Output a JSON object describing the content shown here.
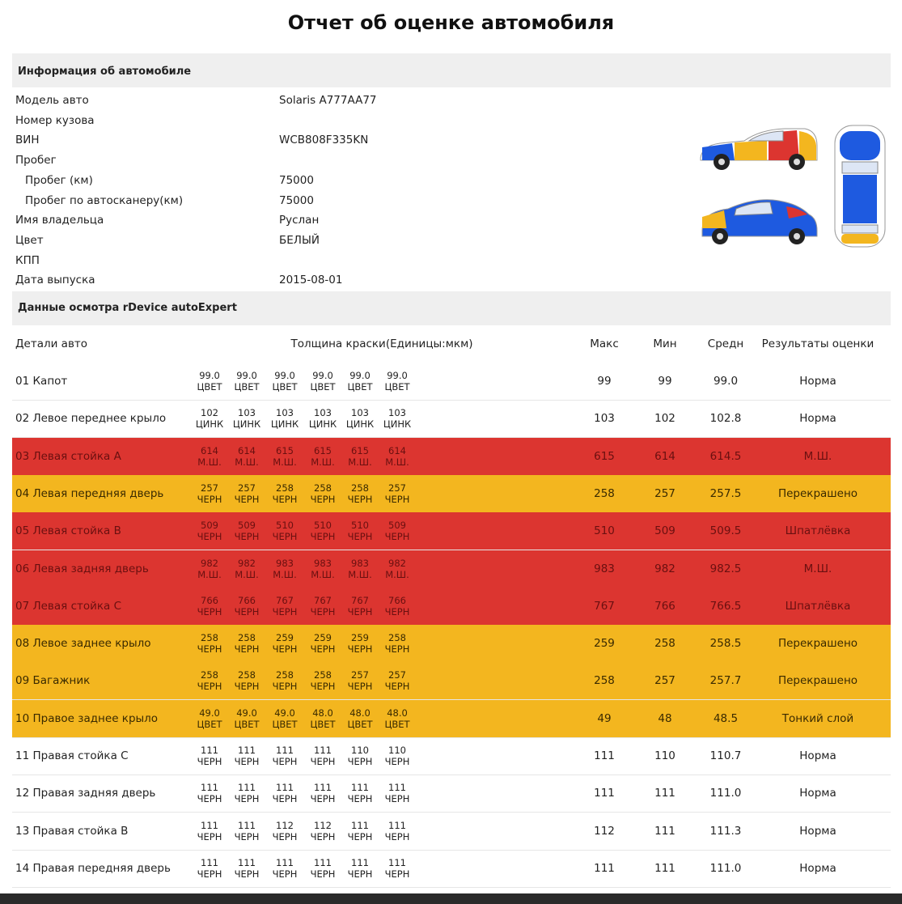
{
  "header": {
    "title": "Отчет об оценке автомобиля"
  },
  "info": {
    "title": "Информация об автомобиле",
    "rows": [
      {
        "label": "Модель авто",
        "value": "Solaris A777AA77"
      },
      {
        "label": "Номер кузова"
      },
      {
        "label": "ВИН",
        "value": "WCB808F335KN"
      },
      {
        "label": "Пробег",
        "children": [
          {
            "label": "Пробег (км)",
            "value": "75000"
          },
          {
            "label": "Пробег по автосканеру(км)",
            "value": "75000"
          }
        ]
      },
      {
        "label": "Имя владельца",
        "value": "Руслан"
      },
      {
        "label": "Цвет",
        "value": "БЕЛЫЙ"
      },
      {
        "label": "КПП"
      },
      {
        "label": "Дата выпуска",
        "value": "2015-08-01"
      }
    ]
  },
  "inspection": {
    "title": "Данные осмотра rDevice autoExpert",
    "table": {
      "columns": [
        "Детали авто",
        "Толщина краски(Единицы:мкм)",
        "Макс",
        "Мин",
        "Средн",
        "Результаты оценки"
      ],
      "rows": [
        {
          "part": "01 Капот",
          "readings": [
            [
              "99.0",
              "ЦВЕТ"
            ],
            [
              "99.0",
              "ЦВЕТ"
            ],
            [
              "99.0",
              "ЦВЕТ"
            ],
            [
              "99.0",
              "ЦВЕТ"
            ],
            [
              "99.0",
              "ЦВЕТ"
            ],
            [
              "99.0",
              "ЦВЕТ"
            ]
          ],
          "max": "99",
          "min": "99",
          "avg": "99.0",
          "result": "Норма"
        },
        {
          "part": "02 Левое переднее крыло",
          "readings": [
            [
              "102",
              "ЦИНК"
            ],
            [
              "103",
              "ЦИНК"
            ],
            [
              "103",
              "ЦИНК"
            ],
            [
              "103",
              "ЦИНК"
            ],
            [
              "103",
              "ЦИНК"
            ],
            [
              "103",
              "ЦИНК"
            ]
          ],
          "max": "103",
          "min": "102",
          "avg": "102.8",
          "result": "Норма"
        },
        {
          "part": "03 Левая стойка А",
          "readings": [
            [
              "614",
              "М.Ш."
            ],
            [
              "614",
              "М.Ш."
            ],
            [
              "615",
              "М.Ш."
            ],
            [
              "615",
              "М.Ш."
            ],
            [
              "615",
              "М.Ш."
            ],
            [
              "614",
              "М.Ш."
            ]
          ],
          "max": "615",
          "min": "614",
          "avg": "614.5",
          "result": "М.Ш.",
          "color": "#dc3530"
        },
        {
          "part": "04 Левая передняя дверь",
          "readings": [
            [
              "257",
              "ЧЕРН"
            ],
            [
              "257",
              "ЧЕРН"
            ],
            [
              "258",
              "ЧЕРН"
            ],
            [
              "258",
              "ЧЕРН"
            ],
            [
              "258",
              "ЧЕРН"
            ],
            [
              "257",
              "ЧЕРН"
            ]
          ],
          "max": "258",
          "min": "257",
          "avg": "257.5",
          "result": "Перекрашено",
          "color": "#f3b61f"
        },
        {
          "part": "05 Левая стойка В",
          "readings": [
            [
              "509",
              "ЧЕРН"
            ],
            [
              "509",
              "ЧЕРН"
            ],
            [
              "510",
              "ЧЕРН"
            ],
            [
              "510",
              "ЧЕРН"
            ],
            [
              "510",
              "ЧЕРН"
            ],
            [
              "509",
              "ЧЕРН"
            ]
          ],
          "max": "510",
          "min": "509",
          "avg": "509.5",
          "result": "Шпатлёвка",
          "color": "#dc3530"
        },
        {
          "part": "06 Левая задняя дверь",
          "readings": [
            [
              "982",
              "М.Ш."
            ],
            [
              "982",
              "М.Ш."
            ],
            [
              "983",
              "М.Ш."
            ],
            [
              "983",
              "М.Ш."
            ],
            [
              "983",
              "М.Ш."
            ],
            [
              "982",
              "М.Ш."
            ]
          ],
          "max": "983",
          "min": "982",
          "avg": "982.5",
          "result": "М.Ш.",
          "color": "#dc3530"
        },
        {
          "part": "07 Левая стойка С",
          "readings": [
            [
              "766",
              "ЧЕРН"
            ],
            [
              "766",
              "ЧЕРН"
            ],
            [
              "767",
              "ЧЕРН"
            ],
            [
              "767",
              "ЧЕРН"
            ],
            [
              "767",
              "ЧЕРН"
            ],
            [
              "766",
              "ЧЕРН"
            ]
          ],
          "max": "767",
          "min": "766",
          "avg": "766.5",
          "result": "Шпатлёвка",
          "color": "#dc3530"
        },
        {
          "part": "08 Левое заднее крыло",
          "readings": [
            [
              "258",
              "ЧЕРН"
            ],
            [
              "258",
              "ЧЕРН"
            ],
            [
              "259",
              "ЧЕРН"
            ],
            [
              "259",
              "ЧЕРН"
            ],
            [
              "259",
              "ЧЕРН"
            ],
            [
              "258",
              "ЧЕРН"
            ]
          ],
          "max": "259",
          "min": "258",
          "avg": "258.5",
          "result": "Перекрашено",
          "color": "#f3b61f"
        },
        {
          "part": "09 Багажник",
          "readings": [
            [
              "258",
              "ЧЕРН"
            ],
            [
              "258",
              "ЧЕРН"
            ],
            [
              "258",
              "ЧЕРН"
            ],
            [
              "258",
              "ЧЕРН"
            ],
            [
              "257",
              "ЧЕРН"
            ],
            [
              "257",
              "ЧЕРН"
            ]
          ],
          "max": "258",
          "min": "257",
          "avg": "257.7",
          "result": "Перекрашено",
          "color": "#f3b61f"
        },
        {
          "part": "10 Правое заднее крыло",
          "readings": [
            [
              "49.0",
              "ЦВЕТ"
            ],
            [
              "49.0",
              "ЦВЕТ"
            ],
            [
              "49.0",
              "ЦВЕТ"
            ],
            [
              "48.0",
              "ЦВЕТ"
            ],
            [
              "48.0",
              "ЦВЕТ"
            ],
            [
              "48.0",
              "ЦВЕТ"
            ]
          ],
          "max": "49",
          "min": "48",
          "avg": "48.5",
          "result": "Тонкий слой",
          "color": "#f3b61f"
        },
        {
          "part": "11 Правая стойка С",
          "readings": [
            [
              "111",
              "ЧЕРН"
            ],
            [
              "111",
              "ЧЕРН"
            ],
            [
              "111",
              "ЧЕРН"
            ],
            [
              "111",
              "ЧЕРН"
            ],
            [
              "110",
              "ЧЕРН"
            ],
            [
              "110",
              "ЧЕРН"
            ]
          ],
          "max": "111",
          "min": "110",
          "avg": "110.7",
          "result": "Норма"
        },
        {
          "part": "12 Правая задняя дверь",
          "readings": [
            [
              "111",
              "ЧЕРН"
            ],
            [
              "111",
              "ЧЕРН"
            ],
            [
              "111",
              "ЧЕРН"
            ],
            [
              "111",
              "ЧЕРН"
            ],
            [
              "111",
              "ЧЕРН"
            ],
            [
              "111",
              "ЧЕРН"
            ]
          ],
          "max": "111",
          "min": "111",
          "avg": "111.0",
          "result": "Норма"
        },
        {
          "part": "13 Правая стойка В",
          "readings": [
            [
              "111",
              "ЧЕРН"
            ],
            [
              "111",
              "ЧЕРН"
            ],
            [
              "112",
              "ЧЕРН"
            ],
            [
              "112",
              "ЧЕРН"
            ],
            [
              "111",
              "ЧЕРН"
            ],
            [
              "111",
              "ЧЕРН"
            ]
          ],
          "max": "112",
          "min": "111",
          "avg": "111.3",
          "result": "Норма"
        },
        {
          "part": "14 Правая передняя дверь",
          "readings": [
            [
              "111",
              "ЧЕРН"
            ],
            [
              "111",
              "ЧЕРН"
            ],
            [
              "111",
              "ЧЕРН"
            ],
            [
              "111",
              "ЧЕРН"
            ],
            [
              "111",
              "ЧЕРН"
            ],
            [
              "111",
              "ЧЕРН"
            ]
          ],
          "max": "111",
          "min": "111",
          "avg": "111.0",
          "result": "Норма"
        }
      ]
    }
  }
}
